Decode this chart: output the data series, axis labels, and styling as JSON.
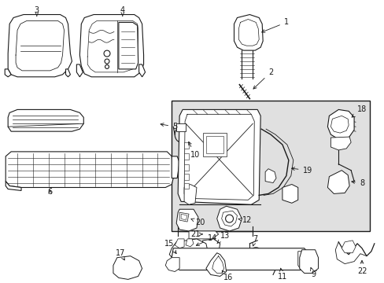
{
  "bg_color": "#ffffff",
  "line_color": "#1a1a1a",
  "box_bg": "#e0e0e0",
  "lw": 0.8
}
